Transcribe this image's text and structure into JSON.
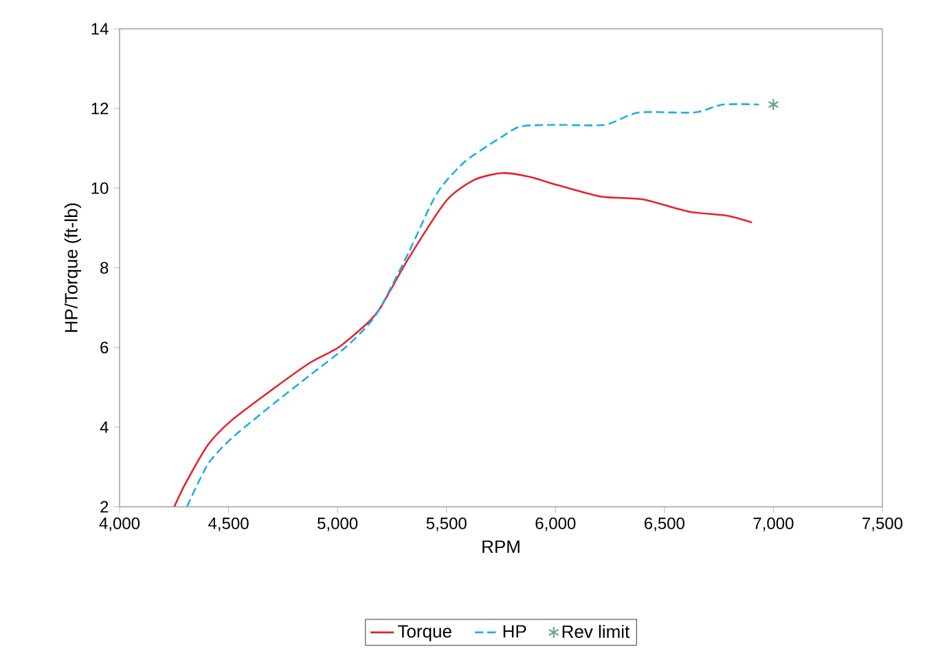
{
  "chart_data": {
    "type": "line",
    "xlabel": "RPM",
    "ylabel": "HP/Torque (ft-lb)",
    "xlim": [
      4000,
      7500
    ],
    "ylim": [
      2,
      14
    ],
    "xticks": [
      {
        "value": 4000,
        "label": "4,000"
      },
      {
        "value": 4500,
        "label": "4,500"
      },
      {
        "value": 5000,
        "label": "5,000"
      },
      {
        "value": 5500,
        "label": "5,500"
      },
      {
        "value": 6000,
        "label": "6,000"
      },
      {
        "value": 6500,
        "label": "6,500"
      },
      {
        "value": 7000,
        "label": "7,000"
      },
      {
        "value": 7500,
        "label": "7,500"
      }
    ],
    "yticks": [
      2,
      4,
      6,
      8,
      10,
      12,
      14
    ],
    "legend": "bottom",
    "grid": false,
    "series": [
      {
        "name": "Torque",
        "color": "#e8202a",
        "line_style": "solid",
        "marker": "none",
        "x": [
          4251,
          4296,
          4405,
          4514,
          4707,
          4875,
          5004,
          5133,
          5197,
          5326,
          5500,
          5628,
          5757,
          5885,
          5995,
          6207,
          6400,
          6613,
          6786,
          6902
        ],
        "values": [
          2.0,
          2.52,
          3.55,
          4.17,
          4.97,
          5.62,
          6.0,
          6.59,
          7.0,
          8.24,
          9.69,
          10.21,
          10.38,
          10.28,
          10.1,
          9.79,
          9.72,
          9.41,
          9.31,
          9.14
        ]
      },
      {
        "name": "HP",
        "color": "#1aaee8",
        "line_style": "dashed",
        "marker": "none",
        "x": [
          4309,
          4405,
          4514,
          4707,
          4875,
          5030,
          5133,
          5197,
          5326,
          5455,
          5583,
          5757,
          5840,
          5995,
          6226,
          6381,
          6638,
          6767,
          6934
        ],
        "values": [
          2.0,
          3.07,
          3.72,
          4.59,
          5.31,
          5.97,
          6.52,
          7.0,
          8.38,
          9.86,
          10.66,
          11.3,
          11.55,
          11.59,
          11.59,
          11.9,
          11.9,
          12.1,
          12.1
        ]
      },
      {
        "name": "Rev limit",
        "type": "scatter",
        "color": "#5fa88a",
        "marker": "cross",
        "x": [
          7000
        ],
        "values": [
          12.1
        ]
      }
    ]
  }
}
